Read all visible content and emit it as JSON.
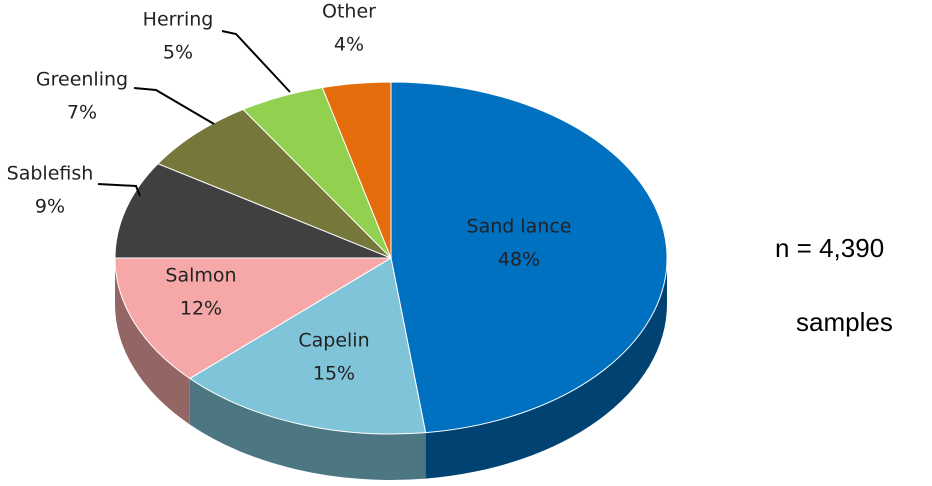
{
  "chart_data": {
    "type": "pie3d",
    "categories": [
      "Sand lance",
      "Capelin",
      "Salmon",
      "Sablefish",
      "Greenling",
      "Herring",
      "Other"
    ],
    "values": [
      48,
      15,
      12,
      9,
      7,
      5,
      4
    ],
    "value_labels": [
      "48%",
      "15%",
      "12%",
      "9%",
      "7%",
      "5%",
      "4%"
    ],
    "colors": [
      "#0070c0",
      "#7fc4d8",
      "#f6a8a8",
      "#404040",
      "#76773a",
      "#92d050",
      "#e46c0a"
    ],
    "annotations": [
      "n = 4,390",
      "samples"
    ]
  }
}
